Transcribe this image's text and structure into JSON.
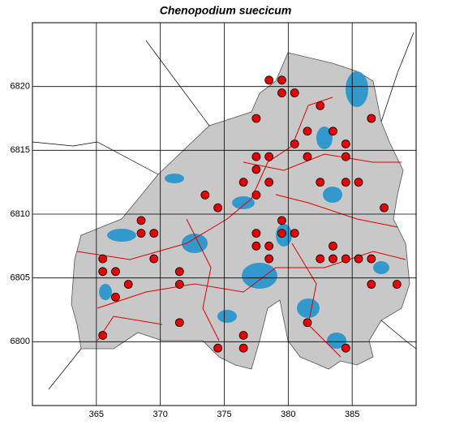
{
  "chart_data": {
    "type": "scatter",
    "title": "Chenopodium suecicum",
    "x": [
      378.5,
      379.5,
      379.5,
      380.5,
      382.5,
      377.5,
      386.5,
      381.5,
      383.5,
      380.5,
      384.5,
      377.5,
      378.5,
      381.5,
      384.5,
      377.5,
      376.5,
      378.5,
      382.5,
      384.5,
      385.5,
      373.5,
      377.5,
      374.5,
      387.5,
      368.5,
      379.5,
      368.5,
      369.5,
      377.5,
      379.5,
      380.5,
      377.5,
      378.5,
      383.5,
      365.5,
      369.5,
      378.5,
      382.5,
      383.5,
      384.5,
      385.5,
      386.5,
      365.5,
      366.5,
      371.5,
      367.5,
      371.5,
      386.5,
      388.5,
      366.5,
      381.5,
      371.5,
      365.5,
      376.5,
      374.5,
      376.5,
      384.5
    ],
    "y": [
      6820.5,
      6820.5,
      6819.5,
      6819.5,
      6818.5,
      6817.5,
      6817.5,
      6816.5,
      6816.5,
      6815.5,
      6815.5,
      6814.5,
      6814.5,
      6814.5,
      6814.5,
      6813.5,
      6812.5,
      6812.5,
      6812.5,
      6812.5,
      6812.5,
      6811.5,
      6811.5,
      6810.5,
      6810.5,
      6809.5,
      6809.5,
      6808.5,
      6808.5,
      6808.5,
      6808.5,
      6808.5,
      6807.5,
      6807.5,
      6807.5,
      6806.5,
      6806.5,
      6806.5,
      6806.5,
      6806.5,
      6806.5,
      6806.5,
      6806.5,
      6805.5,
      6805.5,
      6805.5,
      6804.5,
      6804.5,
      6804.5,
      6804.5,
      6803.5,
      6801.5,
      6801.5,
      6800.5,
      6800.5,
      6799.5,
      6799.5,
      6799.5
    ],
    "color": "#e60000",
    "xlim": [
      360,
      390
    ],
    "ylim": [
      6795,
      6825
    ],
    "xticks": [
      365,
      370,
      375,
      380,
      385
    ],
    "yticks": [
      6800,
      6805,
      6810,
      6815,
      6820
    ],
    "grid": true
  }
}
